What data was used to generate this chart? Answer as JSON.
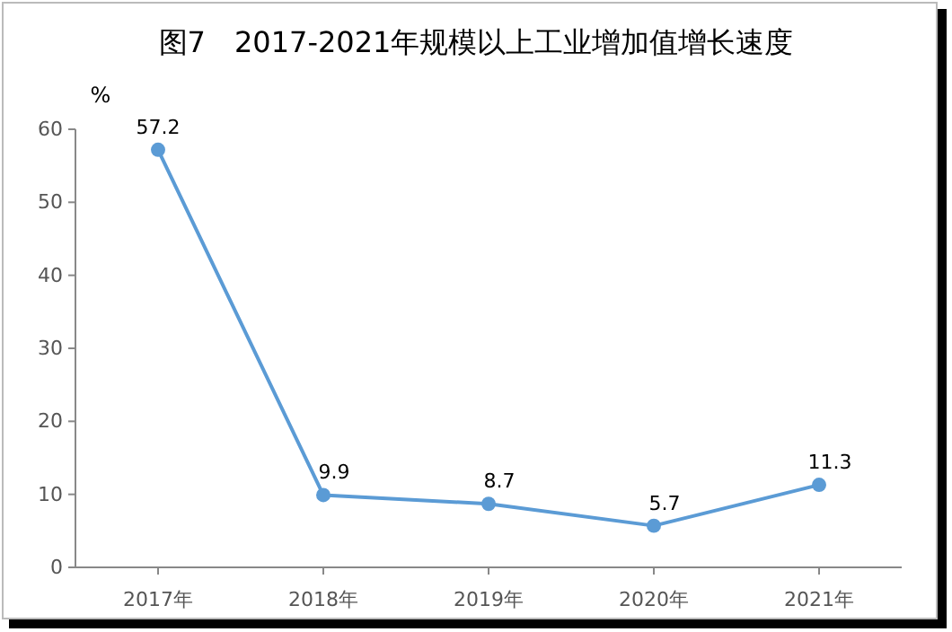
{
  "chart_data": {
    "type": "line",
    "title": "图7　2017-2021年规模以上工业增加值增长速度",
    "ylabel": "%",
    "categories": [
      "2017年",
      "2018年",
      "2019年",
      "2020年",
      "2021年"
    ],
    "series": [
      {
        "color": "#5b9bd5",
        "values": [
          57.2,
          9.9,
          8.7,
          5.7,
          11.3
        ]
      }
    ],
    "ylim": [
      0,
      60
    ],
    "yticks": [
      0,
      10,
      20,
      30,
      40,
      50,
      60
    ],
    "marker": "circle",
    "line_style": "solid",
    "data_labels": true
  }
}
